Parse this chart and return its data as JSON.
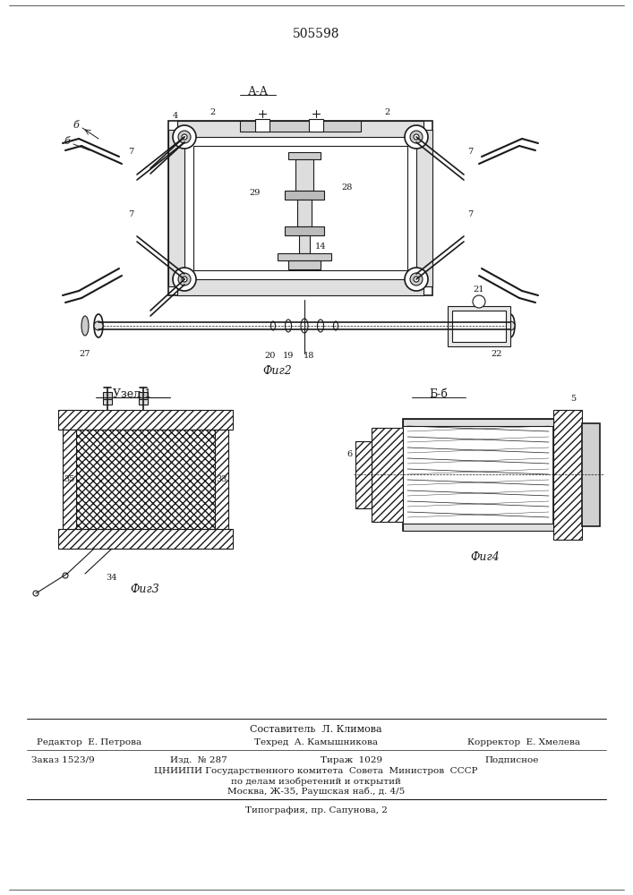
{
  "patent_number": "505598",
  "background_color": "#ffffff",
  "line_color": "#1a1a1a",
  "fig2_label": "Фиг2",
  "fig3_label": "Фиг3",
  "fig4_label": "Фиг4",
  "section_aa": "А-А",
  "section_bb": "Б-б",
  "node1": "Узел 1",
  "footer_line1": "Составитель  Л. Климова",
  "footer_line2_col1": "Редактор  Е. Петрова",
  "footer_line2_col2": "Техред  А. Камышникова",
  "footer_line2_col3": "Корректор  Е. Хмелева",
  "footer_line3_col1": "Заказ 1523/9",
  "footer_line3_col2": "Изд.  № 287",
  "footer_line3_col3": "Тираж  1029",
  "footer_line3_col4": "Подписное",
  "footer_line4": "ЦНИИПИ Государственного комитета  Совета  Министров  СССР",
  "footer_line5": "по делам изобретений и открытий",
  "footer_line6": "Москва, Ж-35, Раушская наб., д. 4/5",
  "footer_line7": "Типография, пр. Сапунова, 2"
}
